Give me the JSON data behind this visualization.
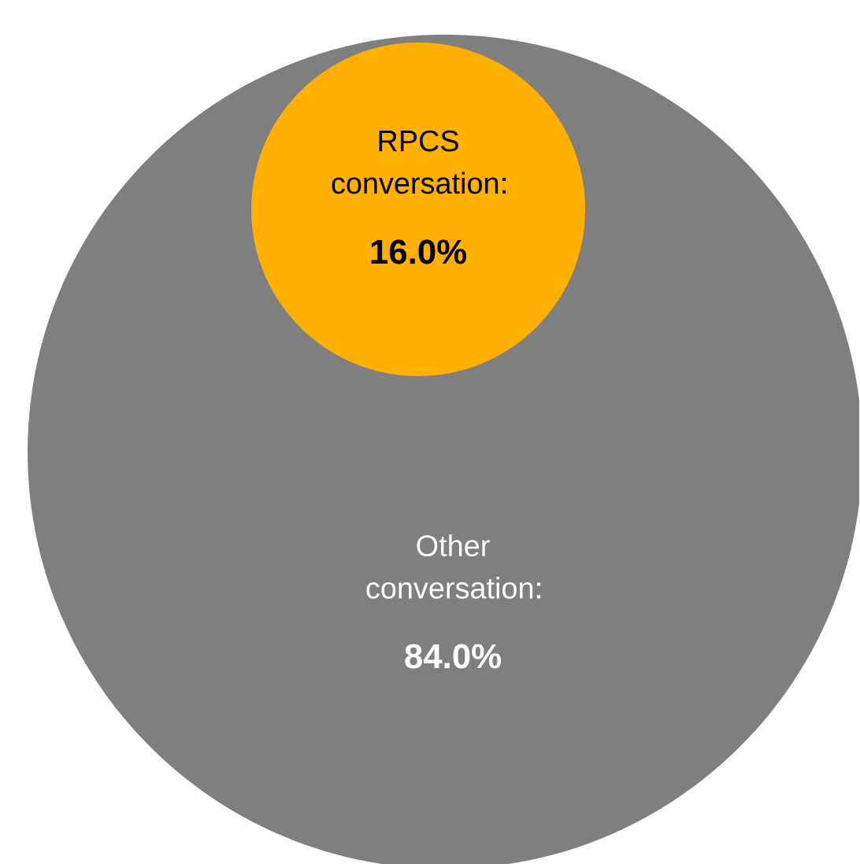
{
  "chart_data": {
    "type": "other",
    "categories": [
      "RPCS conversation",
      "Other conversation"
    ],
    "values": [
      16.0,
      84.0
    ],
    "value_labels": [
      "16.0%",
      "84.0%"
    ],
    "colors": [
      "#ffb000",
      "#7f7f7f"
    ]
  }
}
